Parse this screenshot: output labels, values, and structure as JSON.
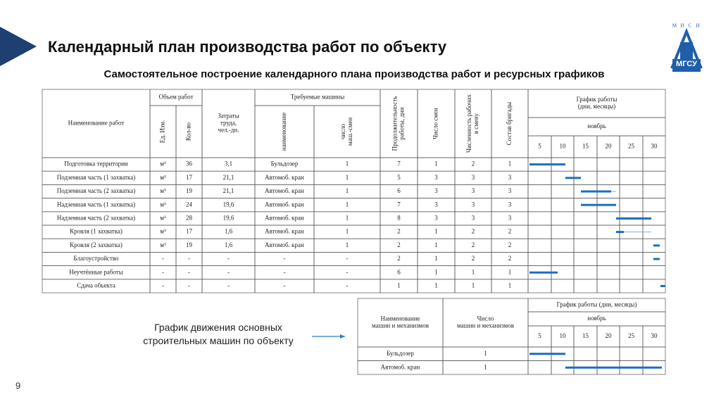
{
  "header": {
    "title": "Календарный план производства работ по объекту",
    "subtitle": "Самостоятельное построение календарного плана производства работ и ресурсных графиков",
    "logo_letters": [
      "М",
      "И",
      "С",
      "И"
    ],
    "logo_name": "МГСУ"
  },
  "main_table": {
    "headers": {
      "name": "Наименование работ",
      "volume": "Объем работ",
      "unit": "Ед. Изм.",
      "qty": "Кол-во",
      "labor": [
        "Затраты",
        "труда,",
        "чел.-дн."
      ],
      "machines": "Требуемые машины",
      "machine_name": "наименование",
      "machine_shifts": [
        "число",
        "маш.-смен"
      ],
      "duration": [
        "Продолжительность",
        "работы, дни"
      ],
      "shifts": "Число смен",
      "workers": [
        "Численность рабочих",
        "в смену"
      ],
      "crew": "Состав бригады",
      "schedule": [
        "График работы",
        "(дни, месяцы)"
      ],
      "month": "ноябрь",
      "days": [
        "5",
        "10",
        "15",
        "20",
        "25",
        "30"
      ]
    },
    "rows": [
      [
        "Подготовка территории",
        "м²",
        "36",
        "3,1",
        "Бульдозер",
        "1",
        "7",
        "1",
        "2",
        "1"
      ],
      [
        "Подземная часть (1 захватка)",
        "м³",
        "17",
        "21,1",
        "Автомоб. кран",
        "1",
        "5",
        "3",
        "3",
        "3"
      ],
      [
        "Подземная часть (2 захватка)",
        "м³",
        "19",
        "21,1",
        "Автомоб. кран",
        "1",
        "6",
        "3",
        "3",
        "3"
      ],
      [
        "Надземная часть (1 захватка)",
        "м³",
        "24",
        "19,6",
        "Автомоб. кран",
        "1",
        "7",
        "3",
        "3",
        "3"
      ],
      [
        "Надземная часть (2 захватка)",
        "м³",
        "28",
        "19,6",
        "Автомоб. кран",
        "1",
        "8",
        "3",
        "3",
        "3"
      ],
      [
        "Кровля (1 захватка)",
        "м³",
        "17",
        "1,6",
        "Автомоб. кран",
        "1",
        "2",
        "1",
        "2",
        "2"
      ],
      [
        "Кровля (2 захватка)",
        "м³",
        "19",
        "1,6",
        "Автомоб. кран",
        "1",
        "2",
        "1",
        "2",
        "2"
      ],
      [
        "Благоустройство",
        "-",
        "-",
        "-",
        "-",
        "-",
        "2",
        "1",
        "2",
        "2"
      ],
      [
        "Неучтённые работы",
        "-",
        "-",
        "-",
        "-",
        "-",
        "6",
        "1",
        "1",
        "1"
      ],
      [
        "Сдача объекта",
        "-",
        "-",
        "-",
        "-",
        "-",
        "1",
        "1",
        "1",
        "1"
      ]
    ]
  },
  "machine_table": {
    "headers": {
      "name": [
        "Наименование",
        "машин и механизмов"
      ],
      "count": [
        "Число",
        "машин и механизмов"
      ],
      "schedule": "График работы (дни, месяцы)",
      "month": "ноябрь",
      "days": [
        "5",
        "10",
        "15",
        "20",
        "25",
        "30"
      ]
    },
    "rows": [
      [
        "Бульдозер",
        "1"
      ],
      [
        "Автомоб. кран",
        "1"
      ]
    ]
  },
  "caption": [
    "График движения основных",
    "строительных машин по объекту"
  ],
  "page_number": "9"
}
